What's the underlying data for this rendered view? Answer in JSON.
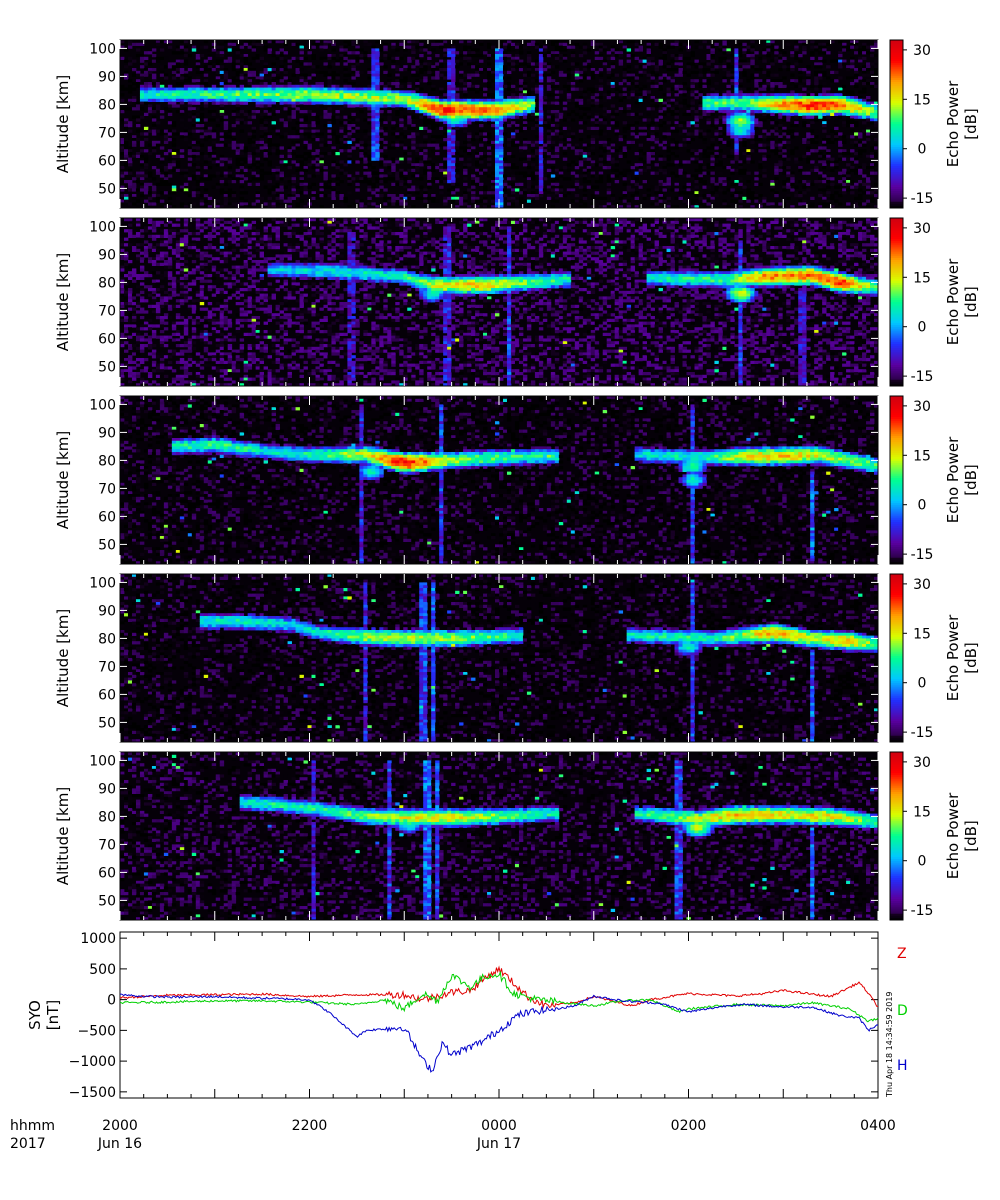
{
  "chart_data": [
    {
      "type": "heatmap",
      "panel": 1,
      "ylabel": "Altitude [km]",
      "yticks": [
        50,
        60,
        70,
        80,
        90,
        100
      ],
      "ylim": [
        43,
        103
      ],
      "colorbar": {
        "label_line1": "Echo Power",
        "label_line2": "[dB]",
        "ticks": [
          30,
          15,
          0,
          -15
        ],
        "range": [
          -18,
          33
        ]
      },
      "background_db": -17,
      "layers": [
        {
          "t": [
            0.25,
            2.0,
            3.0,
            3.4,
            4.0,
            4.35
          ],
          "alt": [
            83.5,
            83.5,
            82,
            78,
            78,
            80
          ],
          "peak_db": [
            5,
            12,
            12,
            26,
            22,
            10
          ]
        },
        {
          "t": [
            6.2,
            6.6,
            7.0,
            7.3,
            7.6,
            8.0
          ],
          "alt": [
            80.5,
            80.5,
            80,
            79.5,
            80,
            77
          ],
          "peak_db": [
            8,
            10,
            20,
            26,
            22,
            10
          ]
        }
      ],
      "blobs": [
        {
          "t": 3.55,
          "alt": 75,
          "db": 8
        },
        {
          "t": 6.55,
          "alt": 74,
          "db": 12
        },
        {
          "t": 6.55,
          "alt": 71,
          "db": 6
        }
      ],
      "vertical_streaks": [
        {
          "t": 2.7,
          "alt": [
            60,
            100
          ],
          "db": -6
        },
        {
          "t": 3.5,
          "alt": [
            52,
            100
          ],
          "db": -8
        },
        {
          "t": 4.0,
          "alt": [
            42,
            100
          ],
          "db": -4
        },
        {
          "t": 4.45,
          "alt": [
            48,
            100
          ],
          "db": -9
        },
        {
          "t": 6.5,
          "alt": [
            62,
            100
          ],
          "db": -6
        }
      ]
    },
    {
      "type": "heatmap",
      "panel": 2,
      "ylabel": "Altitude [km]",
      "yticks": [
        50,
        60,
        70,
        80,
        90,
        100
      ],
      "ylim": [
        43,
        103
      ],
      "colorbar": {
        "label_line1": "Echo Power",
        "label_line2": "[dB]",
        "ticks": [
          30,
          15,
          0,
          -15
        ],
        "range": [
          -18,
          33
        ]
      },
      "background_db": -15,
      "layers": [
        {
          "t": [
            1.6,
            2.2,
            3.0,
            3.3,
            3.8,
            4.3,
            4.7
          ],
          "alt": [
            84.5,
            84,
            82,
            79,
            79,
            80,
            81
          ],
          "peak_db": [
            2,
            4,
            6,
            14,
            18,
            10,
            6
          ]
        },
        {
          "t": [
            5.6,
            6.4,
            6.8,
            7.3,
            7.6,
            8.0
          ],
          "alt": [
            81.5,
            81,
            82,
            82.5,
            80,
            78
          ],
          "peak_db": [
            5,
            8,
            20,
            22,
            25,
            8
          ]
        }
      ],
      "blobs": [
        {
          "t": 3.3,
          "alt": 76,
          "db": 6
        },
        {
          "t": 6.55,
          "alt": 76,
          "db": 14
        }
      ],
      "vertical_streaks": [
        {
          "t": 2.45,
          "alt": [
            43,
            98
          ],
          "db": -10
        },
        {
          "t": 3.45,
          "alt": [
            43,
            100
          ],
          "db": -8
        },
        {
          "t": 4.1,
          "alt": [
            43,
            100
          ],
          "db": -6
        },
        {
          "t": 6.55,
          "alt": [
            43,
            95
          ],
          "db": -6
        },
        {
          "t": 7.2,
          "alt": [
            43,
            80
          ],
          "db": -9
        }
      ]
    },
    {
      "type": "heatmap",
      "panel": 3,
      "ylabel": "Altitude [km]",
      "yticks": [
        50,
        60,
        70,
        80,
        90,
        100
      ],
      "ylim": [
        43,
        103
      ],
      "colorbar": {
        "label_line1": "Echo Power",
        "label_line2": "[dB]",
        "ticks": [
          30,
          15,
          0,
          -15
        ],
        "range": [
          -18,
          33
        ]
      },
      "background_db": -17,
      "layers": [
        {
          "t": [
            0.6,
            1.0,
            1.6,
            2.0,
            2.6,
            3.0,
            3.5,
            4.0,
            4.6
          ],
          "alt": [
            85,
            85.5,
            83,
            82,
            82,
            79,
            80,
            81,
            81.5
          ],
          "peak_db": [
            6,
            8,
            4,
            6,
            14,
            28,
            12,
            8,
            5
          ]
        },
        {
          "t": [
            5.5,
            6.2,
            6.6,
            7.0,
            7.4,
            8.0
          ],
          "alt": [
            82,
            81,
            81.5,
            81.5,
            82,
            78
          ],
          "peak_db": [
            4,
            6,
            16,
            18,
            14,
            8
          ]
        }
      ],
      "blobs": [
        {
          "t": 2.65,
          "alt": 76,
          "db": 6
        },
        {
          "t": 6.05,
          "alt": 78,
          "db": 8
        },
        {
          "t": 6.05,
          "alt": 73,
          "db": 5
        }
      ],
      "vertical_streaks": [
        {
          "t": 2.55,
          "alt": [
            43,
            100
          ],
          "db": -8
        },
        {
          "t": 3.4,
          "alt": [
            43,
            100
          ],
          "db": -6
        },
        {
          "t": 6.05,
          "alt": [
            43,
            100
          ],
          "db": -6
        },
        {
          "t": 7.3,
          "alt": [
            44,
            76
          ],
          "db": -4
        }
      ]
    },
    {
      "type": "heatmap",
      "panel": 4,
      "ylabel": "Altitude [km]",
      "yticks": [
        50,
        60,
        70,
        80,
        90,
        100
      ],
      "ylim": [
        43,
        103
      ],
      "colorbar": {
        "label_line1": "Echo Power",
        "label_line2": "[dB]",
        "ticks": [
          30,
          15,
          0,
          -15
        ],
        "range": [
          -18,
          33
        ]
      },
      "background_db": -17,
      "layers": [
        {
          "t": [
            0.9,
            1.3,
            1.8,
            2.1,
            2.6,
            3.0,
            3.5,
            4.2
          ],
          "alt": [
            86,
            86,
            85,
            82,
            80.5,
            80,
            80,
            81
          ],
          "peak_db": [
            5,
            6,
            3,
            5,
            12,
            14,
            12,
            6
          ]
        },
        {
          "t": [
            5.4,
            5.9,
            6.3,
            6.9,
            7.3,
            7.7,
            8.0
          ],
          "alt": [
            81,
            80.5,
            80,
            82,
            80,
            79,
            78
          ],
          "peak_db": [
            5,
            6,
            6,
            20,
            14,
            18,
            8
          ]
        }
      ],
      "blobs": [
        {
          "t": 6.0,
          "alt": 77,
          "db": 6
        }
      ],
      "vertical_streaks": [
        {
          "t": 2.6,
          "alt": [
            43,
            100
          ],
          "db": -8
        },
        {
          "t": 3.2,
          "alt": [
            43,
            100
          ],
          "db": -6
        },
        {
          "t": 3.3,
          "alt": [
            43,
            100
          ],
          "db": -4
        },
        {
          "t": 6.05,
          "alt": [
            43,
            100
          ],
          "db": -6
        },
        {
          "t": 7.3,
          "alt": [
            43,
            76
          ],
          "db": -4
        }
      ]
    },
    {
      "type": "heatmap",
      "panel": 5,
      "ylabel": "Altitude [km]",
      "yticks": [
        50,
        60,
        70,
        80,
        90,
        100
      ],
      "ylim": [
        43,
        103
      ],
      "colorbar": {
        "label_line1": "Echo Power",
        "label_line2": "[dB]",
        "ticks": [
          30,
          15,
          0,
          -15
        ],
        "range": [
          -18,
          33
        ]
      },
      "background_db": -16,
      "layers": [
        {
          "t": [
            1.3,
            1.7,
            2.0,
            2.6,
            3.0,
            3.5,
            4.0,
            4.6
          ],
          "alt": [
            85,
            84,
            83,
            80,
            79.5,
            79.5,
            80,
            81
          ],
          "peak_db": [
            5,
            6,
            6,
            10,
            14,
            16,
            10,
            5
          ]
        },
        {
          "t": [
            5.5,
            6.1,
            6.5,
            7.0,
            7.5,
            8.0
          ],
          "alt": [
            81,
            79,
            80.5,
            80.5,
            80,
            78
          ],
          "peak_db": [
            6,
            14,
            18,
            16,
            16,
            8
          ]
        }
      ],
      "blobs": [
        {
          "t": 6.1,
          "alt": 76,
          "db": 14
        },
        {
          "t": 3.05,
          "alt": 77,
          "db": 6
        }
      ],
      "vertical_streaks": [
        {
          "t": 2.05,
          "alt": [
            43,
            100
          ],
          "db": -10
        },
        {
          "t": 2.85,
          "alt": [
            43,
            100
          ],
          "db": -6
        },
        {
          "t": 3.25,
          "alt": [
            43,
            100
          ],
          "db": -4
        },
        {
          "t": 3.35,
          "alt": [
            43,
            100
          ],
          "db": -5
        },
        {
          "t": 5.9,
          "alt": [
            43,
            100
          ],
          "db": -6
        },
        {
          "t": 7.3,
          "alt": [
            43,
            76
          ],
          "db": -4
        }
      ]
    },
    {
      "type": "line",
      "panel": 6,
      "ylabel_line1": "SYO",
      "ylabel_line2": "[nT]",
      "yticks": [
        1000,
        500,
        0,
        -500,
        -1000,
        -1500
      ],
      "ylim": [
        -1600,
        1100
      ],
      "xlim": [
        0,
        8
      ],
      "series": [
        {
          "name": "Z",
          "color": "#e00000",
          "t": [
            0,
            0.5,
            1,
            1.5,
            2.0,
            2.5,
            3.0,
            3.2,
            3.5,
            3.7,
            3.85,
            4.0,
            4.3,
            4.5,
            4.8,
            5.0,
            5.4,
            5.6,
            6.0,
            6.5,
            6.8,
            7.0,
            7.2,
            7.5,
            7.7,
            7.8,
            7.9,
            8.0
          ],
          "y": [
            30,
            70,
            80,
            90,
            50,
            80,
            80,
            0,
            120,
            150,
            350,
            500,
            50,
            -100,
            -50,
            50,
            -100,
            0,
            100,
            60,
            100,
            150,
            110,
            50,
            200,
            280,
            100,
            -120
          ]
        },
        {
          "name": "D",
          "color": "#00d000",
          "t": [
            0,
            0.5,
            1,
            1.5,
            2.0,
            2.5,
            2.8,
            3.0,
            3.2,
            3.35,
            3.5,
            3.7,
            3.85,
            4.0,
            4.15,
            4.4,
            4.7,
            5.0,
            5.3,
            5.6,
            5.9,
            6.0,
            6.5,
            7.0,
            7.3,
            7.5,
            7.7,
            7.9,
            8.0
          ],
          "y": [
            -50,
            -40,
            -20,
            -20,
            -40,
            -80,
            0,
            -150,
            100,
            -20,
            400,
            200,
            380,
            420,
            100,
            0,
            -50,
            -100,
            -20,
            0,
            -200,
            -150,
            -80,
            -100,
            -50,
            -100,
            -150,
            -350,
            -300
          ]
        },
        {
          "name": "H",
          "color": "#0000cc",
          "t": [
            0,
            0.3,
            0.6,
            1,
            1.3,
            1.6,
            2.0,
            2.2,
            2.5,
            2.6,
            3.0,
            3.2,
            3.3,
            3.4,
            3.5,
            3.8,
            4.0,
            4.2,
            4.4,
            4.6,
            4.8,
            5.0,
            5.3,
            5.7,
            6.0,
            6.4,
            6.6,
            7.0,
            7.3,
            7.6,
            7.8,
            7.9,
            8.0
          ],
          "y": [
            80,
            50,
            40,
            50,
            30,
            20,
            0,
            -200,
            -600,
            -500,
            -450,
            -1000,
            -1150,
            -700,
            -900,
            -700,
            -500,
            -250,
            -180,
            -150,
            -100,
            60,
            -20,
            -60,
            -200,
            -100,
            -80,
            -120,
            -120,
            -260,
            -300,
            -500,
            -400
          ]
        }
      ]
    }
  ],
  "x_axis": {
    "row_label": "hhmm",
    "year_label": "2017",
    "ticks": [
      {
        "t": 0,
        "time": "2000",
        "date": "Jun 16"
      },
      {
        "t": 2,
        "time": "2200",
        "date": ""
      },
      {
        "t": 4,
        "time": "0000",
        "date": "Jun 17"
      },
      {
        "t": 6,
        "time": "0200",
        "date": ""
      },
      {
        "t": 8,
        "time": "0400",
        "date": ""
      }
    ],
    "minor_ticks_per_major": 4
  },
  "timestamp": "Thu Apr 18 14:34:59 2019",
  "colors": {
    "colormap": [
      "#1a0028",
      "#5a00a0",
      "#2030ff",
      "#00c8ff",
      "#00ff90",
      "#d8ff00",
      "#ffa000",
      "#ff0000",
      "#d00010"
    ]
  }
}
